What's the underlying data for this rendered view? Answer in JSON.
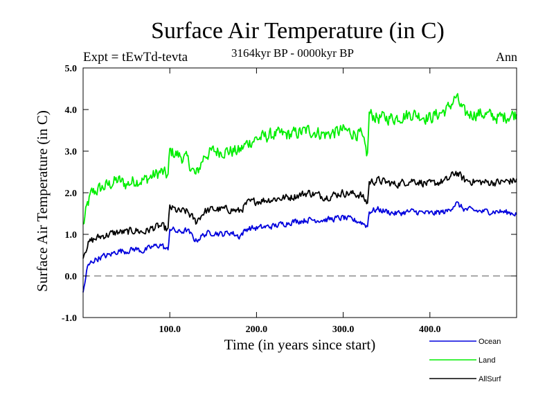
{
  "header": {
    "title": "Surface Air Temperature (in C)",
    "experiment": "Expt = tEwTd-tevta",
    "period": "3164kyr BP - 0000kyr BP",
    "season": "Ann"
  },
  "chart_data": {
    "type": "line",
    "title": "Surface Air Temperature (in C)",
    "xlabel": "Time (in years since start)",
    "ylabel": "Surface Air Temperature (in C)",
    "xlim": [
      0,
      500
    ],
    "ylim": [
      -1.0,
      5.0
    ],
    "x_ticks": [
      100,
      200,
      300,
      400
    ],
    "x_tick_labels": [
      "100.0",
      "200.0",
      "300.0",
      "400.0"
    ],
    "y_ticks": [
      -1,
      0,
      1,
      2,
      3,
      4,
      5
    ],
    "y_tick_labels": [
      "-1.0",
      "0.0",
      "1.0",
      "2.0",
      "3.0",
      "4.0",
      "5.0"
    ],
    "reference_line": {
      "y": 0.0,
      "style": "dashed"
    },
    "x": [
      0,
      5,
      10,
      20,
      30,
      40,
      50,
      60,
      70,
      80,
      90,
      98,
      100,
      110,
      120,
      130,
      140,
      150,
      160,
      170,
      180,
      190,
      200,
      220,
      240,
      260,
      280,
      300,
      320,
      328,
      330,
      340,
      360,
      380,
      400,
      420,
      430,
      440,
      460,
      480,
      500
    ],
    "series": [
      {
        "name": "Ocean",
        "color": "#0000dd",
        "values": [
          -0.4,
          0.2,
          0.35,
          0.45,
          0.5,
          0.6,
          0.6,
          0.65,
          0.6,
          0.7,
          0.75,
          0.6,
          1.15,
          1.05,
          1.1,
          0.85,
          1.0,
          1.05,
          1.0,
          1.05,
          0.95,
          1.15,
          1.15,
          1.2,
          1.3,
          1.35,
          1.35,
          1.4,
          1.3,
          1.2,
          1.55,
          1.6,
          1.5,
          1.55,
          1.5,
          1.55,
          1.75,
          1.6,
          1.55,
          1.55,
          1.5
        ]
      },
      {
        "name": "Land",
        "color": "#00ee00",
        "values": [
          1.2,
          1.7,
          2.0,
          2.1,
          2.2,
          2.3,
          2.2,
          2.3,
          2.3,
          2.4,
          2.5,
          2.4,
          3.0,
          2.9,
          2.8,
          2.4,
          2.9,
          3.0,
          3.0,
          3.0,
          3.0,
          3.2,
          3.3,
          3.4,
          3.4,
          3.5,
          3.4,
          3.5,
          3.4,
          2.9,
          3.9,
          3.8,
          3.8,
          3.9,
          3.8,
          4.0,
          4.3,
          3.9,
          3.9,
          3.8,
          3.9
        ]
      },
      {
        "name": "AllSurf",
        "color": "#000000",
        "values": [
          0.5,
          0.75,
          0.85,
          0.95,
          1.0,
          1.05,
          1.05,
          1.1,
          1.05,
          1.15,
          1.2,
          1.1,
          1.65,
          1.55,
          1.55,
          1.3,
          1.55,
          1.6,
          1.6,
          1.6,
          1.55,
          1.75,
          1.8,
          1.85,
          1.9,
          2.0,
          1.9,
          2.0,
          1.95,
          1.75,
          2.25,
          2.3,
          2.2,
          2.3,
          2.2,
          2.3,
          2.5,
          2.3,
          2.25,
          2.25,
          2.3
        ]
      }
    ],
    "legend_placement": "bottom-right"
  }
}
